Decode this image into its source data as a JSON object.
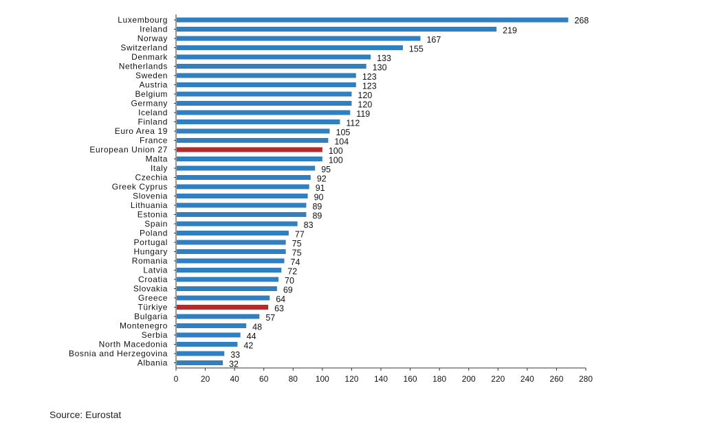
{
  "chart_data": {
    "type": "bar",
    "orientation": "horizontal",
    "categories": [
      "Luxembourg",
      "Ireland",
      "Norway",
      "Switzerland",
      "Denmark",
      "Netherlands",
      "Sweden",
      "Austria",
      "Belgium",
      "Germany",
      "Iceland",
      "Finland",
      "Euro Area 19",
      "France",
      "European Union 27",
      "Malta",
      "Italy",
      "Czechia",
      "Greek Cyprus",
      "Slovenia",
      "Lithuania",
      "Estonia",
      "Spain",
      "Poland",
      "Portugal",
      "Hungary",
      "Romania",
      "Latvia",
      "Croatia",
      "Slovakia",
      "Greece",
      "Türkiye",
      "Bulgaria",
      "Montenegro",
      "Serbia",
      "North Macedonia",
      "Bosnia and Herzegovina",
      "Albania"
    ],
    "values": [
      268,
      219,
      167,
      155,
      133,
      130,
      123,
      123,
      120,
      120,
      119,
      112,
      105,
      104,
      100,
      100,
      95,
      92,
      91,
      90,
      89,
      89,
      83,
      77,
      75,
      75,
      74,
      72,
      70,
      69,
      64,
      63,
      57,
      48,
      44,
      42,
      33,
      32
    ],
    "highlighted": [
      "European Union 27",
      "Türkiye"
    ],
    "xlim": [
      0,
      280
    ],
    "xticks": [
      0,
      20,
      40,
      60,
      80,
      100,
      120,
      140,
      160,
      180,
      200,
      220,
      240,
      260,
      280
    ],
    "grid": false,
    "colors": {
      "bar": "#2f7fc1",
      "highlight": "#b52a2a",
      "axis": "#333333"
    }
  },
  "footer": {
    "source": "Source: Eurostat"
  }
}
